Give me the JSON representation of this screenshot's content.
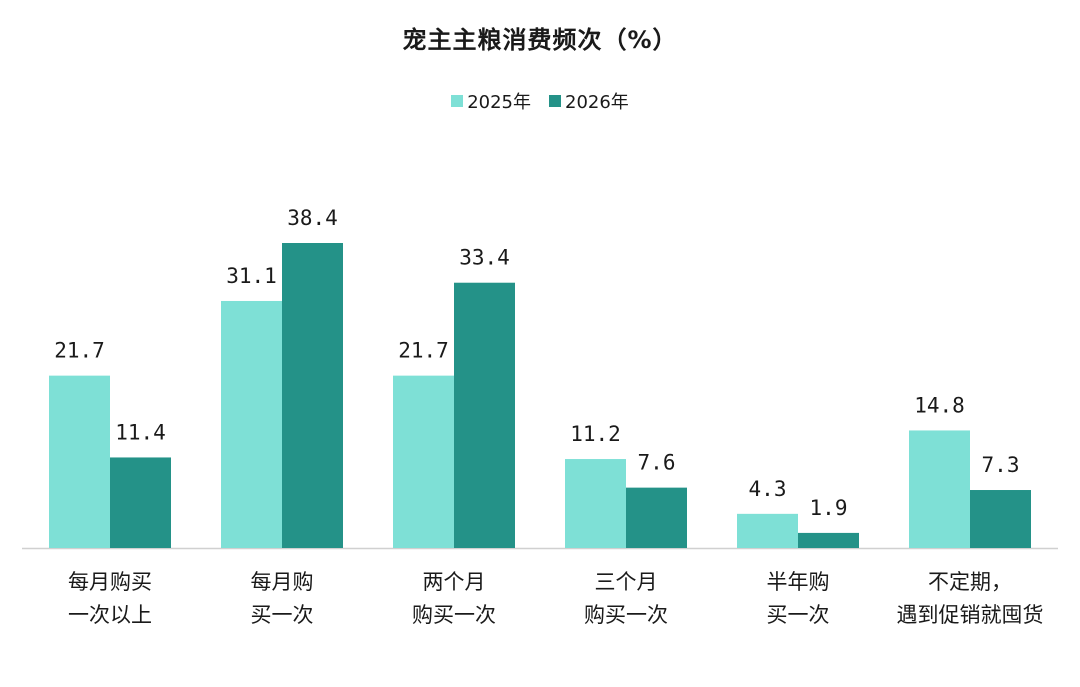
{
  "chart_data": {
    "type": "bar",
    "title": "宠主主粮消费频次（%）",
    "categories": [
      [
        "每月购买",
        "一次以上"
      ],
      [
        "每月购",
        "买一次"
      ],
      [
        "两个月",
        "购买一次"
      ],
      [
        "三个月",
        "购买一次"
      ],
      [
        "半年购",
        "买一次"
      ],
      [
        "不定期，",
        "遇到促销就囤货"
      ]
    ],
    "series": [
      {
        "name": "2025年",
        "color": "#7ee0d6",
        "values": [
          21.7,
          31.1,
          21.7,
          11.2,
          4.3,
          14.8
        ]
      },
      {
        "name": "2026年",
        "color": "#249288",
        "values": [
          11.4,
          38.4,
          33.4,
          7.6,
          1.9,
          7.3
        ]
      }
    ],
    "ylim": [
      0,
      38.4
    ],
    "grid": false,
    "legend_position": "top-center",
    "axis_color": "#d0d0d0"
  }
}
